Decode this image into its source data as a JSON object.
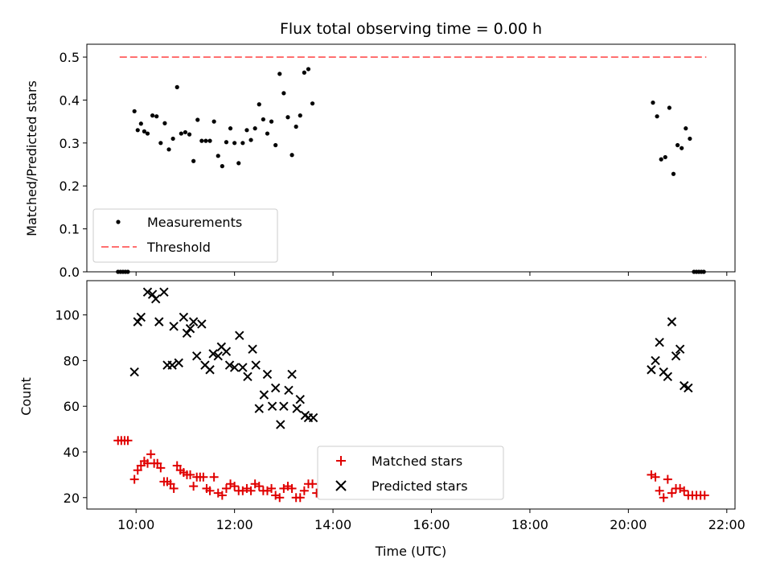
{
  "chart_data": [
    {
      "type": "scatter",
      "title": "Flux total observing time = 0.00 h",
      "xlabel": "",
      "ylabel": "Matched/Predicted stars",
      "xlim": [
        "09:00",
        "22:10"
      ],
      "ylim": [
        0,
        0.53
      ],
      "yticks": [
        "0.0",
        "0.1",
        "0.2",
        "0.3",
        "0.4",
        "0.5"
      ],
      "legend_position": "lower-left",
      "threshold": {
        "name": "Threshold",
        "y": 0.5,
        "x_range": [
          "09:40",
          "21:35"
        ],
        "color": "#ff7070"
      },
      "series": [
        {
          "name": "Measurements",
          "color": "#000000",
          "points": [
            [
              "09:38",
              0.0
            ],
            [
              "09:41",
              0.0
            ],
            [
              "09:44",
              0.0
            ],
            [
              "09:47",
              0.0
            ],
            [
              "09:50",
              0.0
            ],
            [
              "09:58",
              0.374
            ],
            [
              "10:02",
              0.33
            ],
            [
              "10:06",
              0.345
            ],
            [
              "10:10",
              0.327
            ],
            [
              "10:14",
              0.322
            ],
            [
              "10:20",
              0.364
            ],
            [
              "10:25",
              0.362
            ],
            [
              "10:30",
              0.3
            ],
            [
              "10:35",
              0.346
            ],
            [
              "10:40",
              0.285
            ],
            [
              "10:45",
              0.31
            ],
            [
              "10:50",
              0.43
            ],
            [
              "10:55",
              0.322
            ],
            [
              "11:00",
              0.325
            ],
            [
              "11:05",
              0.32
            ],
            [
              "11:10",
              0.258
            ],
            [
              "11:15",
              0.354
            ],
            [
              "11:20",
              0.305
            ],
            [
              "11:25",
              0.305
            ],
            [
              "11:30",
              0.305
            ],
            [
              "11:35",
              0.35
            ],
            [
              "11:40",
              0.27
            ],
            [
              "11:45",
              0.246
            ],
            [
              "11:50",
              0.302
            ],
            [
              "11:55",
              0.334
            ],
            [
              "12:00",
              0.3
            ],
            [
              "12:05",
              0.253
            ],
            [
              "12:10",
              0.3
            ],
            [
              "12:15",
              0.33
            ],
            [
              "12:20",
              0.307
            ],
            [
              "12:25",
              0.334
            ],
            [
              "12:30",
              0.39
            ],
            [
              "12:35",
              0.355
            ],
            [
              "12:40",
              0.322
            ],
            [
              "12:45",
              0.35
            ],
            [
              "12:50",
              0.295
            ],
            [
              "12:55",
              0.461
            ],
            [
              "13:00",
              0.416
            ],
            [
              "13:05",
              0.36
            ],
            [
              "13:10",
              0.272
            ],
            [
              "13:15",
              0.338
            ],
            [
              "13:20",
              0.364
            ],
            [
              "13:25",
              0.464
            ],
            [
              "13:30",
              0.472
            ],
            [
              "13:35",
              0.392
            ],
            [
              "20:30",
              0.394
            ],
            [
              "20:35",
              0.362
            ],
            [
              "20:40",
              0.262
            ],
            [
              "20:45",
              0.267
            ],
            [
              "20:50",
              0.382
            ],
            [
              "20:55",
              0.228
            ],
            [
              "21:00",
              0.295
            ],
            [
              "21:05",
              0.288
            ],
            [
              "21:10",
              0.334
            ],
            [
              "21:15",
              0.31
            ],
            [
              "21:20",
              0.0
            ],
            [
              "21:23",
              0.0
            ],
            [
              "21:26",
              0.0
            ],
            [
              "21:29",
              0.0
            ],
            [
              "21:32",
              0.0
            ]
          ]
        }
      ]
    },
    {
      "type": "scatter",
      "title": "",
      "xlabel": "Time (UTC)",
      "ylabel": "Count",
      "xlim": [
        "09:00",
        "22:10"
      ],
      "ylim": [
        15,
        115
      ],
      "yticks": [
        "20",
        "40",
        "60",
        "80",
        "100"
      ],
      "xticks": [
        "10:00",
        "12:00",
        "14:00",
        "16:00",
        "18:00",
        "20:00",
        "22:00"
      ],
      "legend_position": "lower-center",
      "series": [
        {
          "name": "Matched stars",
          "color": "#e00000",
          "marker": "plus",
          "points": [
            [
              "09:38",
              45
            ],
            [
              "09:42",
              45
            ],
            [
              "09:46",
              45
            ],
            [
              "09:50",
              45
            ],
            [
              "09:58",
              28
            ],
            [
              "10:02",
              32
            ],
            [
              "10:06",
              34
            ],
            [
              "10:10",
              36
            ],
            [
              "10:14",
              35
            ],
            [
              "10:18",
              39
            ],
            [
              "10:22",
              35
            ],
            [
              "10:26",
              35
            ],
            [
              "10:30",
              33
            ],
            [
              "10:34",
              27
            ],
            [
              "10:38",
              27
            ],
            [
              "10:42",
              26
            ],
            [
              "10:46",
              24
            ],
            [
              "10:50",
              34
            ],
            [
              "10:54",
              32
            ],
            [
              "10:58",
              31
            ],
            [
              "11:02",
              30
            ],
            [
              "11:06",
              30
            ],
            [
              "11:10",
              25
            ],
            [
              "11:14",
              29
            ],
            [
              "11:18",
              29
            ],
            [
              "11:22",
              29
            ],
            [
              "11:26",
              24
            ],
            [
              "11:30",
              23
            ],
            [
              "11:35",
              29
            ],
            [
              "11:40",
              22
            ],
            [
              "11:45",
              21
            ],
            [
              "11:50",
              24
            ],
            [
              "11:55",
              26
            ],
            [
              "12:00",
              25
            ],
            [
              "12:05",
              23
            ],
            [
              "12:10",
              23
            ],
            [
              "12:15",
              24
            ],
            [
              "12:20",
              23
            ],
            [
              "12:25",
              26
            ],
            [
              "12:30",
              25
            ],
            [
              "12:35",
              23
            ],
            [
              "12:40",
              23
            ],
            [
              "12:45",
              24
            ],
            [
              "12:50",
              21
            ],
            [
              "12:55",
              20
            ],
            [
              "13:00",
              24
            ],
            [
              "13:05",
              25
            ],
            [
              "13:10",
              24
            ],
            [
              "13:15",
              20
            ],
            [
              "13:20",
              20
            ],
            [
              "13:25",
              23
            ],
            [
              "13:30",
              26
            ],
            [
              "13:35",
              26
            ],
            [
              "13:40",
              22
            ],
            [
              "20:28",
              30
            ],
            [
              "20:33",
              29
            ],
            [
              "20:38",
              23
            ],
            [
              "20:43",
              20
            ],
            [
              "20:48",
              28
            ],
            [
              "20:53",
              22
            ],
            [
              "20:58",
              24
            ],
            [
              "21:03",
              24
            ],
            [
              "21:08",
              23
            ],
            [
              "21:13",
              21
            ],
            [
              "21:18",
              21
            ],
            [
              "21:23",
              21
            ],
            [
              "21:28",
              21
            ],
            [
              "21:33",
              21
            ]
          ]
        },
        {
          "name": "Predicted stars",
          "color": "#000000",
          "marker": "x",
          "points": [
            [
              "09:58",
              75
            ],
            [
              "10:02",
              97
            ],
            [
              "10:06",
              99
            ],
            [
              "10:14",
              110
            ],
            [
              "10:20",
              109
            ],
            [
              "10:24",
              107
            ],
            [
              "10:28",
              97
            ],
            [
              "10:34",
              110
            ],
            [
              "10:38",
              78
            ],
            [
              "10:44",
              78
            ],
            [
              "10:46",
              95
            ],
            [
              "10:52",
              79
            ],
            [
              "10:58",
              99
            ],
            [
              "11:02",
              92
            ],
            [
              "11:06",
              94
            ],
            [
              "11:10",
              97
            ],
            [
              "11:14",
              82
            ],
            [
              "11:20",
              96
            ],
            [
              "11:24",
              78
            ],
            [
              "11:30",
              76
            ],
            [
              "11:34",
              83
            ],
            [
              "11:40",
              82
            ],
            [
              "11:44",
              86
            ],
            [
              "11:50",
              84
            ],
            [
              "11:54",
              78
            ],
            [
              "12:00",
              77
            ],
            [
              "12:06",
              91
            ],
            [
              "12:10",
              77
            ],
            [
              "12:16",
              73
            ],
            [
              "12:22",
              85
            ],
            [
              "12:26",
              78
            ],
            [
              "12:30",
              59
            ],
            [
              "12:36",
              65
            ],
            [
              "12:40",
              74
            ],
            [
              "12:46",
              60
            ],
            [
              "12:50",
              68
            ],
            [
              "12:56",
              52
            ],
            [
              "13:00",
              60
            ],
            [
              "13:06",
              67
            ],
            [
              "13:10",
              74
            ],
            [
              "13:16",
              59
            ],
            [
              "13:20",
              63
            ],
            [
              "13:26",
              56
            ],
            [
              "13:30",
              55
            ],
            [
              "13:36",
              55
            ],
            [
              "20:28",
              76
            ],
            [
              "20:33",
              80
            ],
            [
              "20:38",
              88
            ],
            [
              "20:43",
              75
            ],
            [
              "20:48",
              73
            ],
            [
              "20:53",
              97
            ],
            [
              "20:58",
              82
            ],
            [
              "21:03",
              85
            ],
            [
              "21:08",
              69
            ],
            [
              "21:13",
              68
            ]
          ]
        }
      ]
    }
  ]
}
